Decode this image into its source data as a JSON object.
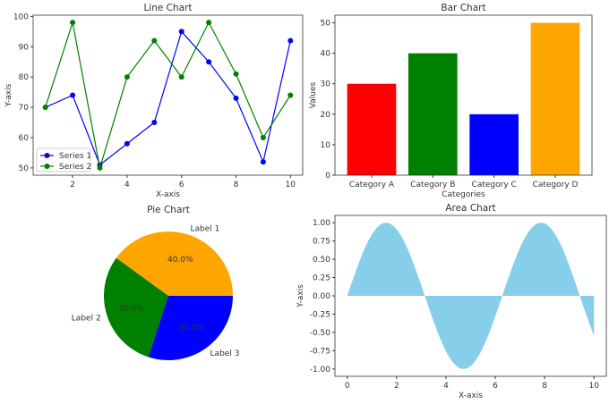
{
  "chart_data": [
    {
      "type": "line",
      "title": "Line Chart",
      "xlabel": "X-axis",
      "ylabel": "Y-axis",
      "x": [
        1,
        2,
        3,
        4,
        5,
        6,
        7,
        8,
        9,
        10
      ],
      "xlim": [
        0.55,
        10.45
      ],
      "ylim": [
        47.6,
        100.4
      ],
      "xticks": [
        2,
        4,
        6,
        8,
        10
      ],
      "yticks": [
        50,
        60,
        70,
        80,
        90,
        100
      ],
      "legend": "lower-left",
      "series": [
        {
          "name": "Series 1",
          "color": "#0000ff",
          "values": [
            70,
            74,
            51,
            58,
            65,
            95,
            85,
            73,
            52,
            92
          ]
        },
        {
          "name": "Series 2",
          "color": "#008000",
          "values": [
            70,
            98,
            50,
            80,
            92,
            80,
            98,
            81,
            60,
            74
          ]
        }
      ]
    },
    {
      "type": "bar",
      "title": "Bar Chart",
      "xlabel": "Categories",
      "ylabel": "Values",
      "categories": [
        "Category A",
        "Category B",
        "Category C",
        "Category D"
      ],
      "values": [
        30,
        40,
        20,
        50
      ],
      "colors": [
        "#ff0000",
        "#008000",
        "#0000ff",
        "#ffa500"
      ],
      "ylim": [
        0,
        52.5
      ],
      "yticks": [
        0,
        10,
        20,
        30,
        40,
        50
      ]
    },
    {
      "type": "pie",
      "title": "Pie Chart",
      "labels": [
        "Label 1",
        "Label 2",
        "Label 3"
      ],
      "values": [
        40,
        30,
        30
      ],
      "pct_labels": [
        "40.0%",
        "30.0%",
        "30.0%"
      ],
      "colors": [
        "#ffa500",
        "#008000",
        "#0000ff"
      ]
    },
    {
      "type": "area",
      "title": "Area Chart",
      "xlabel": "X-axis",
      "ylabel": "Y-axis",
      "function": "sin(x)",
      "xrange": [
        0,
        10
      ],
      "xlim": [
        -0.5,
        10.5
      ],
      "ylim": [
        -1.1,
        1.1
      ],
      "xticks": [
        0,
        2,
        4,
        6,
        8,
        10
      ],
      "yticks": [
        "-1.00",
        "-0.75",
        "-0.50",
        "-0.25",
        "0.00",
        "0.25",
        "0.50",
        "0.75",
        "1.00"
      ],
      "color": "#87ceeb"
    }
  ]
}
